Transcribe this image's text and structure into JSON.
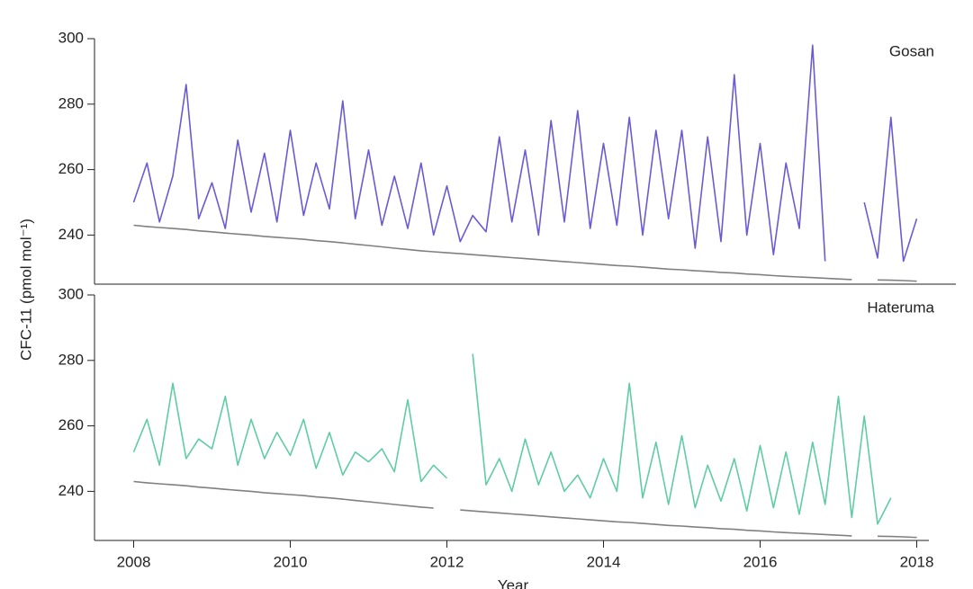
{
  "chart_data": [
    {
      "type": "line",
      "title": "Gosan",
      "ylabel": "CFC-11 (pmol mol⁻¹)",
      "x": [
        2008,
        2008.17,
        2008.33,
        2008.5,
        2008.67,
        2008.83,
        2009,
        2009.17,
        2009.33,
        2009.5,
        2009.67,
        2009.83,
        2010,
        2010.17,
        2010.33,
        2010.5,
        2010.67,
        2010.83,
        2011,
        2011.17,
        2011.33,
        2011.5,
        2011.67,
        2011.83,
        2012,
        2012.17,
        2012.33,
        2012.5,
        2012.67,
        2012.83,
        2013,
        2013.17,
        2013.33,
        2013.5,
        2013.67,
        2013.83,
        2014,
        2014.17,
        2014.33,
        2014.5,
        2014.67,
        2014.83,
        2015,
        2015.17,
        2015.33,
        2015.5,
        2015.67,
        2015.83,
        2016,
        2016.17,
        2016.33,
        2016.5,
        2016.67,
        2016.83,
        2017,
        2017.17,
        2017.33,
        2017.5,
        2017.67,
        2017.83,
        2018
      ],
      "series": [
        {
          "color": "#6b5bd2",
          "values": [
            250,
            262,
            244,
            258,
            286,
            245,
            256,
            242,
            269,
            247,
            265,
            244,
            272,
            246,
            262,
            248,
            281,
            245,
            266,
            243,
            258,
            242,
            262,
            240,
            255,
            238,
            246,
            241,
            270,
            244,
            266,
            240,
            275,
            244,
            278,
            242,
            268,
            243,
            276,
            240,
            272,
            245,
            272,
            236,
            270,
            238,
            289,
            240,
            268,
            234,
            262,
            242,
            298,
            232,
            null,
            null,
            250,
            233,
            276,
            232,
            245
          ]
        },
        {
          "color": "#808080",
          "values": [
            243,
            242.6,
            242.3,
            242,
            241.7,
            241.3,
            241,
            240.6,
            240.3,
            240,
            239.6,
            239.3,
            239,
            238.7,
            238.3,
            238,
            237.6,
            237.2,
            236.8,
            236.4,
            236,
            235.6,
            235.2,
            234.9,
            234.6,
            234.3,
            234,
            233.7,
            233.4,
            233.1,
            232.8,
            232.5,
            232.2,
            231.9,
            231.6,
            231.3,
            231,
            230.7,
            230.5,
            230.2,
            229.9,
            229.6,
            229.4,
            229.1,
            228.9,
            228.6,
            228.4,
            228.1,
            227.9,
            227.6,
            227.4,
            227.2,
            227,
            226.8,
            226.6,
            226.4,
            null,
            226.3,
            226.2,
            226.1,
            225.9
          ]
        }
      ],
      "xlim": [
        2007.5,
        2018.5
      ],
      "ylim": [
        225,
        300
      ],
      "yticks": [
        240,
        260,
        280,
        300
      ]
    },
    {
      "type": "line",
      "title": "Hateruma",
      "xlabel": "Year",
      "x": [
        2008,
        2008.17,
        2008.33,
        2008.5,
        2008.67,
        2008.83,
        2009,
        2009.17,
        2009.33,
        2009.5,
        2009.67,
        2009.83,
        2010,
        2010.17,
        2010.33,
        2010.5,
        2010.67,
        2010.83,
        2011,
        2011.17,
        2011.33,
        2011.5,
        2011.67,
        2011.83,
        2012,
        2012.17,
        2012.33,
        2012.5,
        2012.67,
        2012.83,
        2013,
        2013.17,
        2013.33,
        2013.5,
        2013.67,
        2013.83,
        2014,
        2014.17,
        2014.33,
        2014.5,
        2014.67,
        2014.83,
        2015,
        2015.17,
        2015.33,
        2015.5,
        2015.67,
        2015.83,
        2016,
        2016.17,
        2016.33,
        2016.5,
        2016.67,
        2016.83,
        2017,
        2017.17,
        2017.33,
        2017.5,
        2017.67,
        2017.83,
        2018
      ],
      "series": [
        {
          "color": "#5fcca3",
          "values": [
            252,
            262,
            248,
            273,
            250,
            256,
            253,
            269,
            248,
            262,
            250,
            258,
            251,
            262,
            247,
            258,
            245,
            252,
            249,
            253,
            246,
            268,
            243,
            248,
            244,
            null,
            282,
            242,
            250,
            240,
            256,
            242,
            252,
            240,
            245,
            238,
            250,
            240,
            273,
            238,
            255,
            236,
            257,
            235,
            248,
            237,
            250,
            234,
            254,
            235,
            252,
            233,
            255,
            236,
            269,
            232,
            263,
            230,
            238,
            null,
            null
          ]
        },
        {
          "color": "#808080",
          "values": [
            243,
            242.6,
            242.3,
            242,
            241.7,
            241.3,
            241,
            240.6,
            240.3,
            240,
            239.6,
            239.3,
            239,
            238.7,
            238.3,
            238,
            237.6,
            237.2,
            236.8,
            236.4,
            236,
            235.6,
            235.2,
            234.9,
            null,
            234.3,
            234,
            233.7,
            233.4,
            233.1,
            232.8,
            232.5,
            232.2,
            231.9,
            231.6,
            231.3,
            231,
            230.7,
            230.5,
            230.2,
            229.9,
            229.6,
            229.4,
            229.1,
            228.9,
            228.6,
            228.4,
            228.1,
            227.9,
            227.6,
            227.4,
            227.2,
            227,
            226.8,
            226.6,
            226.4,
            null,
            226.3,
            226.2,
            226.1,
            225.9
          ]
        }
      ],
      "xlim": [
        2007.5,
        2018.5
      ],
      "xticks": [
        2008,
        2010,
        2012,
        2014,
        2016,
        2018
      ],
      "ylim": [
        225,
        300
      ],
      "yticks": [
        240,
        260,
        280,
        300
      ]
    }
  ]
}
